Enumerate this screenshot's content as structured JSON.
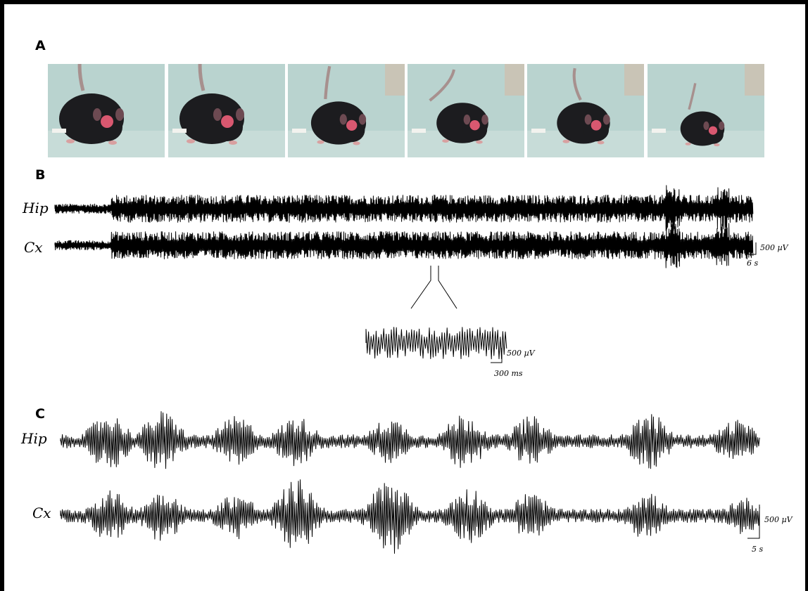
{
  "figure": {
    "panels": {
      "a": {
        "label": "A",
        "frames": 6
      },
      "b": {
        "label": "B",
        "traces": [
          "Hip",
          "Cx"
        ],
        "scale_voltage": "500 µV",
        "scale_time": "6 s",
        "inset_scale_voltage": "500 µV",
        "inset_scale_time": "300 ms"
      },
      "c": {
        "label": "C",
        "traces": [
          "Hip",
          "Cx"
        ],
        "scale_voltage": "500 µV",
        "scale_time": "5 s"
      }
    },
    "colors": {
      "trace": "#000000",
      "photo_background": "#b9d3cf",
      "mouse_body": "#1c1c1f",
      "mouse_headcap": "#d95870"
    },
    "photo_icons": [
      "mouse-frame-icon",
      "mouse-frame-icon",
      "mouse-frame-icon",
      "mouse-frame-icon",
      "mouse-frame-icon",
      "mouse-frame-icon"
    ]
  }
}
